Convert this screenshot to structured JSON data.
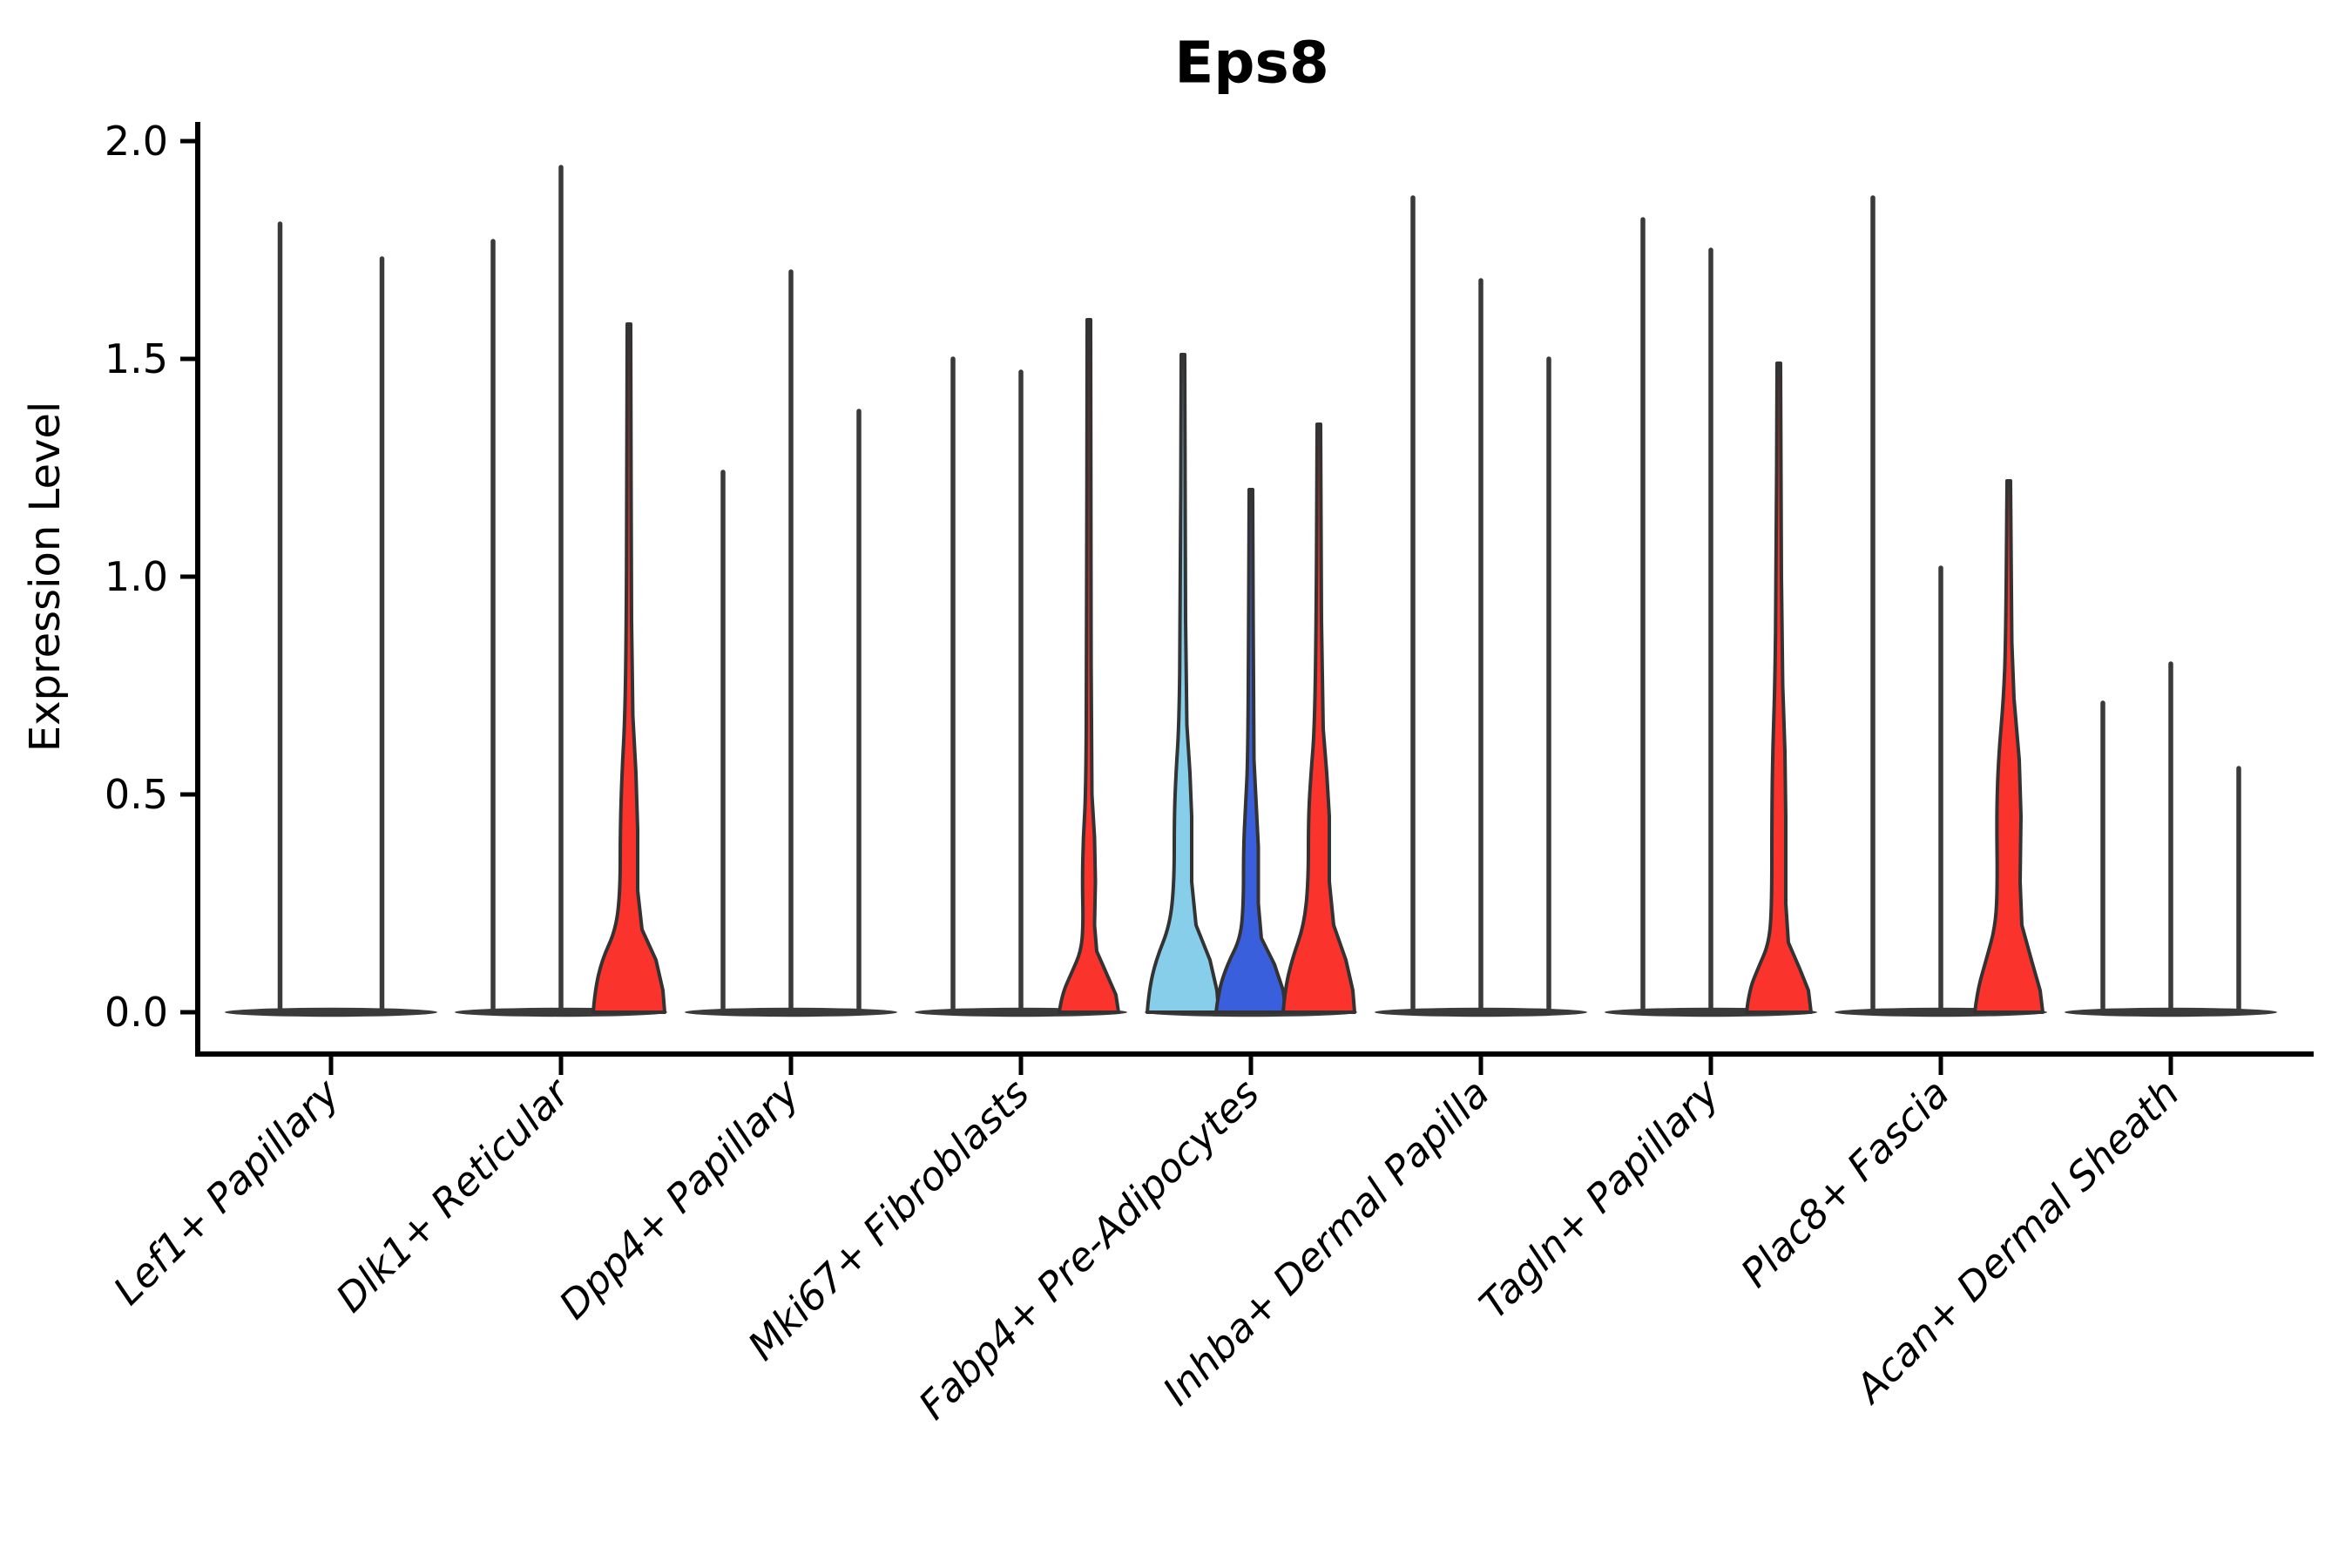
{
  "title": "Eps8",
  "colors": {
    "axis": "#000000",
    "violin_line": "#3a3a3a",
    "violin_outline": "#333333",
    "red": "#fa332c",
    "light_blue": "#87ceeb",
    "dark_blue": "#3a5fdd"
  },
  "chart_data": {
    "type": "violin",
    "title": "Eps8",
    "xlabel": "",
    "ylabel": "Expression Level",
    "ylim": [
      0,
      2.05
    ],
    "yticks": [
      0.0,
      0.5,
      1.0,
      1.5,
      2.0
    ],
    "grid": false,
    "legend": "none",
    "categories": [
      "Lef1+ Papillary",
      "Dlk1+ Reticular",
      "Dpp4+ Papillary",
      "Mki67+ Fibroblasts",
      "Fabp4+ Pre-Adipocytes",
      "Inhba+ Dermal Papilla",
      "Tagln+ Papillary",
      "Plac8+ Fascia",
      "Acan+ Dermal Sheath"
    ],
    "groups": [
      {
        "category": "Lef1+ Papillary",
        "violins": [
          {
            "pos": -0.75,
            "max": 1.81,
            "style": "spike"
          },
          {
            "pos": 0.75,
            "max": 1.73,
            "style": "spike"
          }
        ]
      },
      {
        "category": "Dlk1+ Reticular",
        "violins": [
          {
            "pos": -1,
            "max": 1.77,
            "style": "spike"
          },
          {
            "pos": 0,
            "max": 1.94,
            "style": "spike"
          },
          {
            "pos": 1,
            "max": 1.58,
            "style": "shaped",
            "color": "red",
            "profile": [
              [
                0,
                41
              ],
              [
                0.05,
                39
              ],
              [
                0.12,
                31
              ],
              [
                0.19,
                15
              ],
              [
                0.28,
                10
              ],
              [
                0.42,
                10
              ],
              [
                0.55,
                8
              ],
              [
                0.68,
                4.5
              ],
              [
                0.9,
                3
              ],
              [
                1.2,
                2.5
              ],
              [
                1.58,
                2
              ]
            ]
          }
        ]
      },
      {
        "category": "Dpp4+ Papillary",
        "violins": [
          {
            "pos": -1,
            "max": 1.24,
            "style": "spike"
          },
          {
            "pos": 0,
            "max": 1.7,
            "style": "spike"
          },
          {
            "pos": 1,
            "max": 1.38,
            "style": "spike"
          }
        ]
      },
      {
        "category": "Mki67+ Fibroblasts",
        "violins": [
          {
            "pos": -1,
            "max": 1.5,
            "style": "spike"
          },
          {
            "pos": 0,
            "max": 1.47,
            "style": "spike"
          },
          {
            "pos": 1,
            "max": 1.59,
            "style": "shaped",
            "color": "red",
            "profile": [
              [
                0,
                34
              ],
              [
                0.04,
                31
              ],
              [
                0.09,
                20
              ],
              [
                0.14,
                9
              ],
              [
                0.2,
                6.5
              ],
              [
                0.3,
                7.5
              ],
              [
                0.4,
                6.5
              ],
              [
                0.5,
                3.5
              ],
              [
                0.8,
                2.6
              ],
              [
                1.59,
                2
              ]
            ]
          }
        ]
      },
      {
        "category": "Fabp4+ Pre-Adipocytes",
        "violins": [
          {
            "pos": -1,
            "max": 1.51,
            "style": "shaped",
            "color": "light_blue",
            "profile": [
              [
                0,
                41
              ],
              [
                0.05,
                39
              ],
              [
                0.12,
                31
              ],
              [
                0.2,
                15
              ],
              [
                0.3,
                10
              ],
              [
                0.45,
                10
              ],
              [
                0.55,
                8
              ],
              [
                0.66,
                4.5
              ],
              [
                0.9,
                3
              ],
              [
                1.51,
                2
              ]
            ]
          },
          {
            "pos": 0,
            "max": 1.2,
            "style": "shaped",
            "color": "dark_blue",
            "profile": [
              [
                0,
                40
              ],
              [
                0.05,
                37
              ],
              [
                0.11,
                27
              ],
              [
                0.17,
                12
              ],
              [
                0.25,
                8.5
              ],
              [
                0.38,
                8.5
              ],
              [
                0.48,
                6
              ],
              [
                0.58,
                3.5
              ],
              [
                0.9,
                2.6
              ],
              [
                1.2,
                2
              ]
            ]
          },
          {
            "pos": 1,
            "max": 1.35,
            "style": "shaped",
            "color": "red",
            "profile": [
              [
                0,
                41
              ],
              [
                0.05,
                39
              ],
              [
                0.12,
                31
              ],
              [
                0.2,
                17
              ],
              [
                0.3,
                12
              ],
              [
                0.45,
                12
              ],
              [
                0.55,
                9
              ],
              [
                0.65,
                5
              ],
              [
                0.9,
                3
              ],
              [
                1.35,
                2
              ]
            ]
          }
        ]
      },
      {
        "category": "Inhba+ Dermal Papilla",
        "violins": [
          {
            "pos": -1,
            "max": 1.87,
            "style": "spike"
          },
          {
            "pos": 0,
            "max": 1.68,
            "style": "spike"
          },
          {
            "pos": 1,
            "max": 1.5,
            "style": "spike"
          }
        ]
      },
      {
        "category": "Tagln+ Papillary",
        "violins": [
          {
            "pos": -1,
            "max": 1.82,
            "style": "spike"
          },
          {
            "pos": 0,
            "max": 1.75,
            "style": "spike"
          },
          {
            "pos": 1,
            "max": 1.49,
            "style": "shaped",
            "color": "red",
            "profile": [
              [
                0,
                37
              ],
              [
                0.05,
                34
              ],
              [
                0.1,
                24
              ],
              [
                0.16,
                11
              ],
              [
                0.25,
                8
              ],
              [
                0.45,
                8
              ],
              [
                0.6,
                7
              ],
              [
                0.75,
                4.5
              ],
              [
                1.0,
                3
              ],
              [
                1.49,
                2
              ]
            ]
          }
        ]
      },
      {
        "category": "Plac8+ Fascia",
        "violins": [
          {
            "pos": -1,
            "max": 1.87,
            "style": "spike"
          },
          {
            "pos": 0,
            "max": 1.02,
            "style": "spike"
          },
          {
            "pos": 1,
            "max": 1.22,
            "style": "shaped",
            "color": "red",
            "profile": [
              [
                0,
                39
              ],
              [
                0.05,
                36
              ],
              [
                0.12,
                26
              ],
              [
                0.2,
                15
              ],
              [
                0.3,
                13
              ],
              [
                0.45,
                14
              ],
              [
                0.58,
                12
              ],
              [
                0.72,
                6
              ],
              [
                0.85,
                3.5
              ],
              [
                1.22,
                2
              ]
            ]
          }
        ]
      },
      {
        "category": "Acan+ Dermal Sheath",
        "violins": [
          {
            "pos": -1,
            "max": 0.71,
            "style": "spike"
          },
          {
            "pos": 0,
            "max": 0.8,
            "style": "spike"
          },
          {
            "pos": 1,
            "max": 0.56,
            "style": "spike"
          }
        ]
      }
    ]
  }
}
